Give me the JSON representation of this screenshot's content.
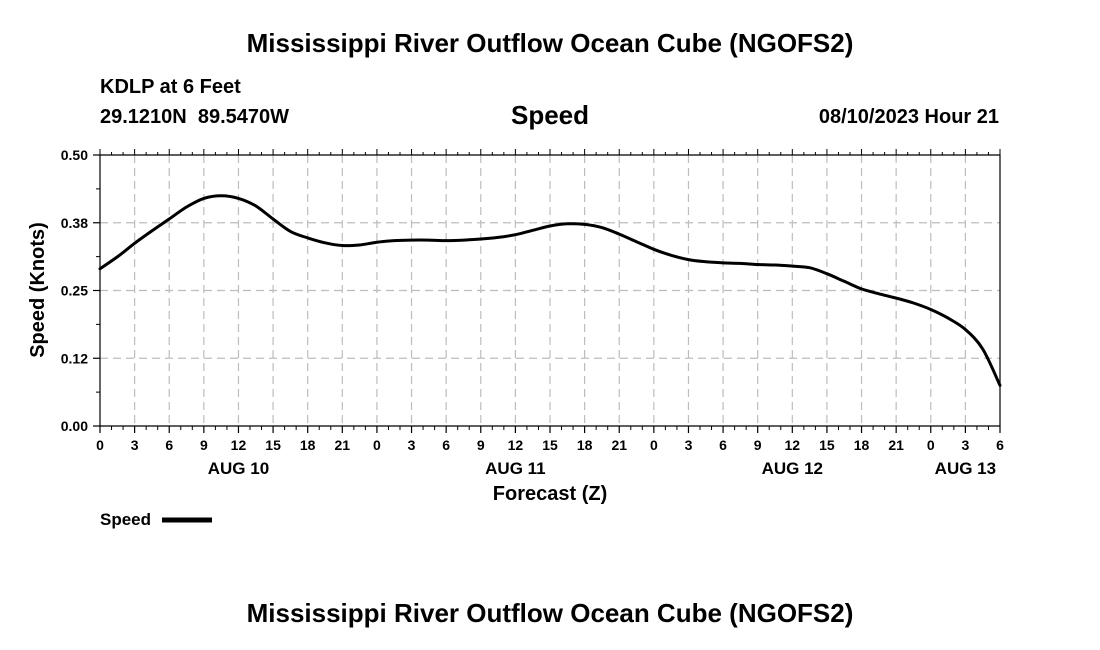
{
  "header": {
    "title": "Mississippi River Outflow Ocean Cube (NGOFS2)",
    "station": "KDLP at 6 Feet",
    "coords": "29.1210N  89.5470W",
    "subtitle": "Speed",
    "datetime": "08/10/2023 Hour 21"
  },
  "footer": {
    "title": "Mississippi River Outflow Ocean Cube (NGOFS2)"
  },
  "chart_data": {
    "type": "line",
    "title": "Speed",
    "xlabel": "Forecast (Z)",
    "ylabel": "Speed (Knots)",
    "xlim": [
      0,
      78
    ],
    "ylim": [
      0.0,
      0.5
    ],
    "grid": true,
    "legend": "bottom-left",
    "x_ticks": [
      0,
      3,
      6,
      9,
      12,
      15,
      18,
      21,
      24,
      27,
      30,
      33,
      36,
      39,
      42,
      45,
      48,
      51,
      54,
      57,
      60,
      63,
      66,
      69,
      72,
      75,
      78
    ],
    "x_tick_labels": [
      "0",
      "3",
      "6",
      "9",
      "12",
      "15",
      "18",
      "21",
      "0",
      "3",
      "6",
      "9",
      "12",
      "15",
      "18",
      "21",
      "0",
      "3",
      "6",
      "9",
      "12",
      "15",
      "18",
      "21",
      "0",
      "3",
      "6"
    ],
    "y_ticks": [
      0.0,
      0.125,
      0.25,
      0.375,
      0.5
    ],
    "y_tick_labels": [
      "0.00",
      "0.12",
      "0.25",
      "0.38",
      "0.50"
    ],
    "day_labels": [
      {
        "label": "AUG 10",
        "x": 12
      },
      {
        "label": "AUG 11",
        "x": 36
      },
      {
        "label": "AUG 12",
        "x": 60
      },
      {
        "label": "AUG 13",
        "x": 75
      }
    ],
    "series": [
      {
        "name": "Speed",
        "color": "#000000",
        "x": [
          0,
          1.5,
          3,
          4.5,
          6,
          7.5,
          9,
          10.5,
          12,
          13.5,
          15,
          16.5,
          18,
          19.5,
          21,
          22.5,
          24,
          25.5,
          27,
          28.5,
          30,
          31.5,
          33,
          34.5,
          36,
          37.5,
          39,
          40.5,
          42,
          43.5,
          45,
          46.5,
          48,
          49.5,
          51,
          52.5,
          54,
          55.5,
          57,
          58.5,
          60,
          61.5,
          63,
          64.5,
          66,
          67.5,
          69,
          70.5,
          72,
          73.5,
          75,
          76.5,
          78
        ],
        "values": [
          0.29,
          0.312,
          0.337,
          0.36,
          0.382,
          0.404,
          0.42,
          0.425,
          0.42,
          0.406,
          0.382,
          0.359,
          0.347,
          0.338,
          0.333,
          0.334,
          0.339,
          0.342,
          0.343,
          0.343,
          0.342,
          0.343,
          0.345,
          0.348,
          0.353,
          0.361,
          0.369,
          0.373,
          0.372,
          0.366,
          0.354,
          0.34,
          0.326,
          0.315,
          0.307,
          0.303,
          0.301,
          0.3,
          0.298,
          0.297,
          0.295,
          0.292,
          0.281,
          0.267,
          0.253,
          0.244,
          0.236,
          0.227,
          0.215,
          0.199,
          0.178,
          0.142,
          0.075
        ]
      }
    ]
  }
}
